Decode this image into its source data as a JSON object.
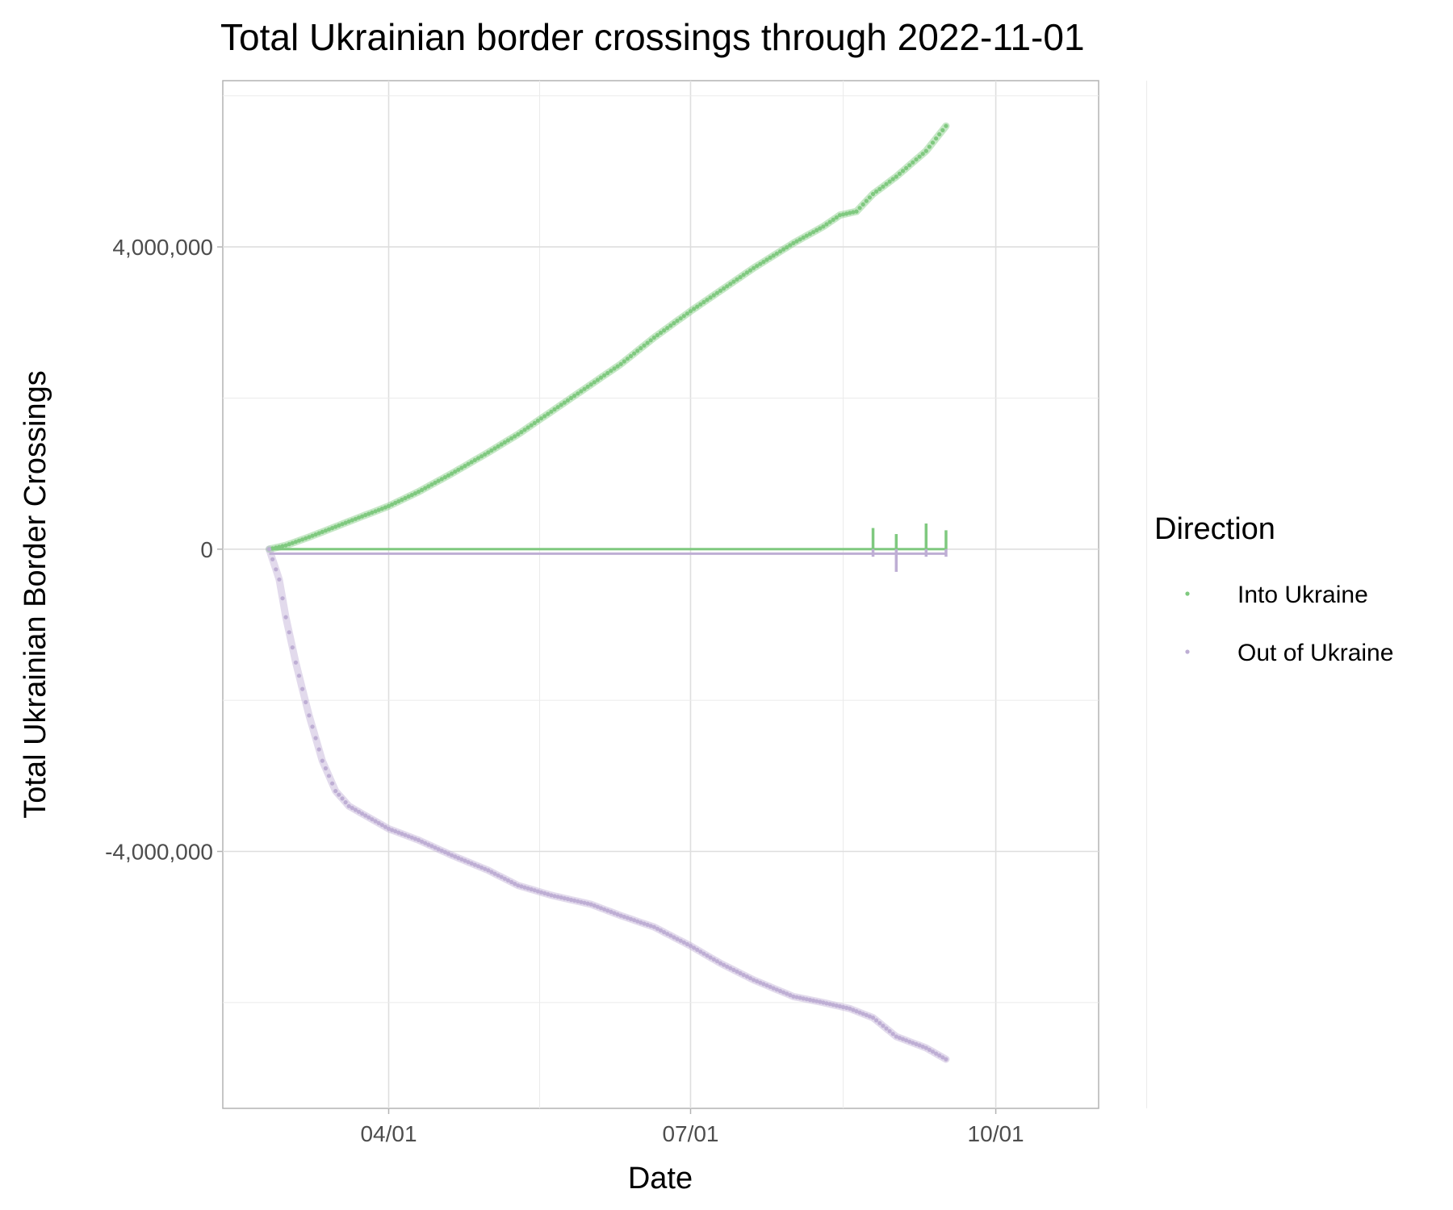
{
  "chart_data": {
    "type": "scatter",
    "title": "Total Ukrainian border crossings through 2022-11-01",
    "xlabel": "Date",
    "ylabel": "Total Ukrainian Border Crossings",
    "x_tick_labels": [
      "04/01",
      "07/01",
      "10/01"
    ],
    "x_tick_dates": [
      "2022-04-01",
      "2022-07-01",
      "2022-10-01"
    ],
    "xlim": [
      "2022-02-10",
      "2022-11-01"
    ],
    "y_tick_labels": [
      "4,000,000",
      "0",
      "-4,000,000"
    ],
    "y_tick_values": [
      4000000,
      0,
      -4000000
    ],
    "ylim": [
      -7400000,
      6200000
    ],
    "grid": true,
    "legend_title": "Direction",
    "legend_position": "right",
    "series": [
      {
        "name": "Into Ukraine",
        "color": "#7fc97f",
        "cumulative": [
          {
            "x": "2022-02-24",
            "y": 0
          },
          {
            "x": "2022-03-01",
            "y": 50000
          },
          {
            "x": "2022-03-08",
            "y": 160000
          },
          {
            "x": "2022-03-15",
            "y": 280000
          },
          {
            "x": "2022-03-22",
            "y": 400000
          },
          {
            "x": "2022-04-01",
            "y": 570000
          },
          {
            "x": "2022-04-10",
            "y": 760000
          },
          {
            "x": "2022-04-20",
            "y": 1000000
          },
          {
            "x": "2022-05-01",
            "y": 1280000
          },
          {
            "x": "2022-05-10",
            "y": 1520000
          },
          {
            "x": "2022-05-20",
            "y": 1820000
          },
          {
            "x": "2022-06-01",
            "y": 2180000
          },
          {
            "x": "2022-06-10",
            "y": 2450000
          },
          {
            "x": "2022-06-20",
            "y": 2800000
          },
          {
            "x": "2022-07-01",
            "y": 3150000
          },
          {
            "x": "2022-07-10",
            "y": 3420000
          },
          {
            "x": "2022-07-20",
            "y": 3720000
          },
          {
            "x": "2022-08-01",
            "y": 4050000
          },
          {
            "x": "2022-08-10",
            "y": 4270000
          },
          {
            "x": "2022-08-15",
            "y": 4420000
          },
          {
            "x": "2022-08-20",
            "y": 4470000
          },
          {
            "x": "2022-08-25",
            "y": 4700000
          },
          {
            "x": "2022-09-01",
            "y": 4930000
          },
          {
            "x": "2022-09-10",
            "y": 5270000
          },
          {
            "x": "2022-09-16",
            "y": 5600000
          }
        ],
        "daily_spikes": [
          {
            "x": "2022-08-25",
            "y": 280000
          },
          {
            "x": "2022-09-01",
            "y": 200000
          },
          {
            "x": "2022-09-10",
            "y": 340000
          },
          {
            "x": "2022-09-16",
            "y": 250000
          }
        ]
      },
      {
        "name": "Out of Ukraine",
        "color": "#beaed4",
        "cumulative": [
          {
            "x": "2022-02-24",
            "y": 0
          },
          {
            "x": "2022-02-27",
            "y": -400000
          },
          {
            "x": "2022-03-01",
            "y": -900000
          },
          {
            "x": "2022-03-04",
            "y": -1500000
          },
          {
            "x": "2022-03-08",
            "y": -2200000
          },
          {
            "x": "2022-03-12",
            "y": -2800000
          },
          {
            "x": "2022-03-16",
            "y": -3200000
          },
          {
            "x": "2022-03-20",
            "y": -3400000
          },
          {
            "x": "2022-03-26",
            "y": -3550000
          },
          {
            "x": "2022-04-01",
            "y": -3700000
          },
          {
            "x": "2022-04-10",
            "y": -3850000
          },
          {
            "x": "2022-04-20",
            "y": -4050000
          },
          {
            "x": "2022-05-01",
            "y": -4250000
          },
          {
            "x": "2022-05-10",
            "y": -4450000
          },
          {
            "x": "2022-05-20",
            "y": -4580000
          },
          {
            "x": "2022-06-01",
            "y": -4700000
          },
          {
            "x": "2022-06-10",
            "y": -4850000
          },
          {
            "x": "2022-06-20",
            "y": -5000000
          },
          {
            "x": "2022-07-01",
            "y": -5250000
          },
          {
            "x": "2022-07-10",
            "y": -5480000
          },
          {
            "x": "2022-07-20",
            "y": -5700000
          },
          {
            "x": "2022-08-01",
            "y": -5920000
          },
          {
            "x": "2022-08-10",
            "y": -6000000
          },
          {
            "x": "2022-08-18",
            "y": -6080000
          },
          {
            "x": "2022-08-25",
            "y": -6200000
          },
          {
            "x": "2022-09-01",
            "y": -6450000
          },
          {
            "x": "2022-09-10",
            "y": -6600000
          },
          {
            "x": "2022-09-16",
            "y": -6750000
          }
        ],
        "daily_spikes": [
          {
            "x": "2022-08-25",
            "y": -100000
          },
          {
            "x": "2022-09-01",
            "y": -300000
          },
          {
            "x": "2022-09-10",
            "y": -100000
          },
          {
            "x": "2022-09-16",
            "y": -100000
          }
        ]
      }
    ]
  }
}
